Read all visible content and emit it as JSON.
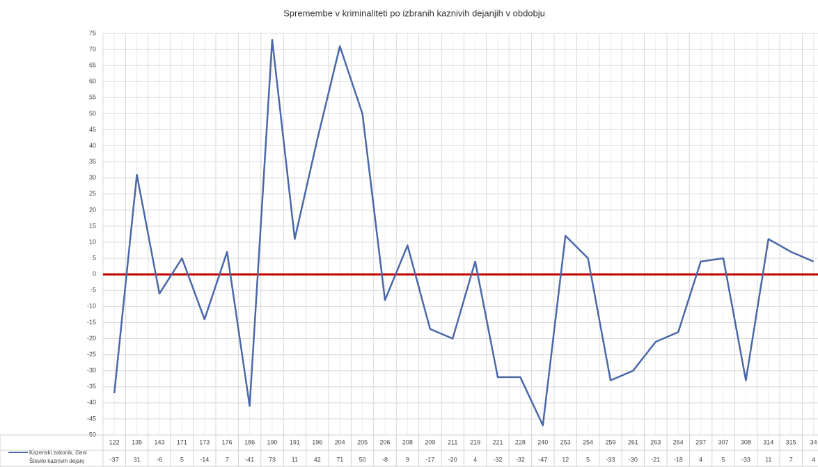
{
  "chart_data": {
    "type": "line",
    "title": "Spremembe  v kriminaliteti po izbranih kaznivih dejanjih v obdobju",
    "categories": [
      "122",
      "135",
      "143",
      "171",
      "173",
      "176",
      "186",
      "190",
      "191",
      "196",
      "204",
      "205",
      "206",
      "208",
      "209",
      "211",
      "219",
      "221",
      "228",
      "240",
      "253",
      "254",
      "259",
      "261",
      "263",
      "264",
      "297",
      "307",
      "308",
      "314",
      "315",
      "34"
    ],
    "category_label": "Kazenski zakonik, členi",
    "series": [
      {
        "name": "Število kaznivih dejanj",
        "color": "#4a68a8",
        "values": [
          -37,
          31,
          -6,
          5,
          -14,
          7,
          -41,
          73,
          11,
          42,
          71,
          50,
          -8,
          9,
          -17,
          -20,
          4,
          -32,
          -32,
          -47,
          12,
          5,
          -33,
          -30,
          -21,
          -18,
          4,
          5,
          -33,
          11,
          7,
          4
        ]
      }
    ],
    "ylim": [
      -50,
      75
    ],
    "yticks": [
      -50,
      -45,
      -40,
      -35,
      -30,
      -25,
      -20,
      -15,
      -10,
      -5,
      0,
      5,
      10,
      15,
      20,
      25,
      30,
      35,
      40,
      45,
      50,
      55,
      60,
      65,
      70,
      75
    ],
    "grid": true,
    "reference_line": {
      "value": 0,
      "color": "#c00000"
    }
  }
}
